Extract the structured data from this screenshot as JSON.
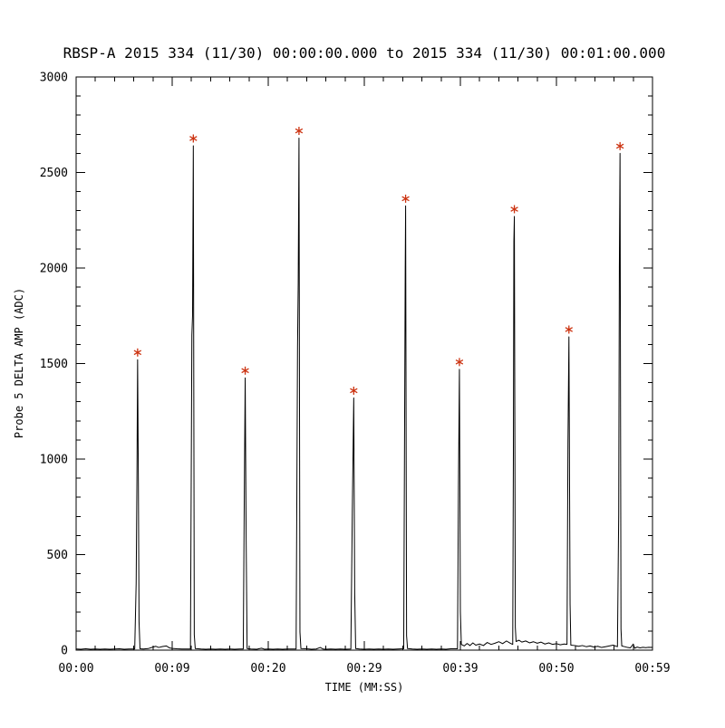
{
  "window": {
    "background": "#ffffff",
    "foreground": "#000000"
  },
  "chart_data": {
    "type": "line",
    "title": "RBSP-A 2015 334 (11/30) 00:00:00.000 to 2015 334 (11/30) 00:01:00.000",
    "xlabel": "TIME (MM:SS)",
    "ylabel": "Probe 5 DELTA AMP (ADC)",
    "xlim": [
      0,
      60
    ],
    "ylim": [
      0,
      3000
    ],
    "grid": false,
    "legend": "none",
    "line_color": "#000000",
    "marker": "asterisk",
    "marker_color": "#cc3311",
    "x_ticks": [
      {
        "t": 0,
        "label": "00:00"
      },
      {
        "t": 10,
        "label": "00:09"
      },
      {
        "t": 20,
        "label": "00:20"
      },
      {
        "t": 30,
        "label": "00:29"
      },
      {
        "t": 40,
        "label": "00:39"
      },
      {
        "t": 50,
        "label": "00:50"
      },
      {
        "t": 60,
        "label": "00:59"
      }
    ],
    "y_ticks": [
      {
        "v": 0,
        "label": "0"
      },
      {
        "v": 500,
        "label": "500"
      },
      {
        "v": 1000,
        "label": "1000"
      },
      {
        "v": 1500,
        "label": "1500"
      },
      {
        "v": 2000,
        "label": "2000"
      },
      {
        "v": 2500,
        "label": "2500"
      },
      {
        "v": 3000,
        "label": "3000"
      }
    ],
    "x_minor_step": 2,
    "y_minor_step": 100,
    "peaks": [
      [
        6.4,
        1520
      ],
      [
        12.2,
        2640
      ],
      [
        17.6,
        1425
      ],
      [
        23.2,
        2680
      ],
      [
        28.9,
        1320
      ],
      [
        34.3,
        2325
      ],
      [
        39.9,
        1470
      ],
      [
        45.62,
        2270
      ],
      [
        51.3,
        1640
      ],
      [
        56.62,
        2600
      ]
    ],
    "series": [
      {
        "name": "Probe 5 DELTA AMP",
        "points": [
          [
            0,
            6
          ],
          [
            0.5,
            5
          ],
          [
            1,
            7
          ],
          [
            1.5,
            5
          ],
          [
            2,
            6
          ],
          [
            2.5,
            5
          ],
          [
            3,
            6
          ],
          [
            3.5,
            5
          ],
          [
            4,
            6
          ],
          [
            4.5,
            7
          ],
          [
            5,
            5
          ],
          [
            5.5,
            6
          ],
          [
            6.1,
            6
          ],
          [
            6.25,
            350
          ],
          [
            6.33,
            890
          ],
          [
            6.4,
            1520
          ],
          [
            6.48,
            880
          ],
          [
            6.55,
            150
          ],
          [
            6.65,
            7
          ],
          [
            7,
            6
          ],
          [
            7.5,
            8
          ],
          [
            8,
            16
          ],
          [
            8.3,
            20
          ],
          [
            8.6,
            14
          ],
          [
            9,
            19
          ],
          [
            9.4,
            22
          ],
          [
            9.7,
            12
          ],
          [
            10,
            9
          ],
          [
            10.5,
            7
          ],
          [
            11,
            6
          ],
          [
            11.9,
            6
          ],
          [
            12.05,
            1650
          ],
          [
            12.12,
            1750
          ],
          [
            12.2,
            2640
          ],
          [
            12.3,
            80
          ],
          [
            12.4,
            8
          ],
          [
            13,
            6
          ],
          [
            13.5,
            5
          ],
          [
            14,
            6
          ],
          [
            14.5,
            5
          ],
          [
            15,
            6
          ],
          [
            15.5,
            5
          ],
          [
            16,
            6
          ],
          [
            16.5,
            5
          ],
          [
            17,
            6
          ],
          [
            17.4,
            6
          ],
          [
            17.5,
            760
          ],
          [
            17.6,
            1425
          ],
          [
            17.7,
            580
          ],
          [
            17.8,
            8
          ],
          [
            18.2,
            6
          ],
          [
            18.8,
            5
          ],
          [
            19.3,
            10
          ],
          [
            19.6,
            5
          ],
          [
            20,
            6
          ],
          [
            20.5,
            5
          ],
          [
            21,
            6
          ],
          [
            21.5,
            5
          ],
          [
            22,
            6
          ],
          [
            22.9,
            6
          ],
          [
            23.05,
            1590
          ],
          [
            23.12,
            1920
          ],
          [
            23.2,
            2680
          ],
          [
            23.3,
            95
          ],
          [
            23.4,
            8
          ],
          [
            24,
            7
          ],
          [
            24.5,
            5
          ],
          [
            25,
            6
          ],
          [
            25.4,
            14
          ],
          [
            25.7,
            6
          ],
          [
            26,
            5
          ],
          [
            26.5,
            6
          ],
          [
            27,
            5
          ],
          [
            27.5,
            6
          ],
          [
            28,
            5
          ],
          [
            28.6,
            6
          ],
          [
            28.75,
            720
          ],
          [
            28.9,
            1320
          ],
          [
            29.0,
            300
          ],
          [
            29.1,
            8
          ],
          [
            29.5,
            6
          ],
          [
            30,
            5
          ],
          [
            30.5,
            6
          ],
          [
            31,
            5
          ],
          [
            31.5,
            6
          ],
          [
            32,
            5
          ],
          [
            32.5,
            6
          ],
          [
            33,
            5
          ],
          [
            33.5,
            6
          ],
          [
            34.1,
            7
          ],
          [
            34.2,
            1250
          ],
          [
            34.26,
            2000
          ],
          [
            34.3,
            2325
          ],
          [
            34.4,
            75
          ],
          [
            34.5,
            8
          ],
          [
            35,
            6
          ],
          [
            35.5,
            5
          ],
          [
            36,
            6
          ],
          [
            36.5,
            5
          ],
          [
            37,
            6
          ],
          [
            37.5,
            5
          ],
          [
            38,
            6
          ],
          [
            38.5,
            5
          ],
          [
            39,
            7
          ],
          [
            39.7,
            7
          ],
          [
            39.8,
            860
          ],
          [
            39.9,
            1470
          ],
          [
            40.0,
            200
          ],
          [
            40.1,
            30
          ],
          [
            40.4,
            22
          ],
          [
            40.7,
            35
          ],
          [
            41,
            24
          ],
          [
            41.3,
            38
          ],
          [
            41.6,
            26
          ],
          [
            42,
            32
          ],
          [
            42.4,
            24
          ],
          [
            42.8,
            40
          ],
          [
            43.2,
            30
          ],
          [
            43.6,
            36
          ],
          [
            44,
            44
          ],
          [
            44.4,
            34
          ],
          [
            44.8,
            48
          ],
          [
            45.2,
            36
          ],
          [
            45.45,
            30
          ],
          [
            45.52,
            1040
          ],
          [
            45.57,
            2140
          ],
          [
            45.62,
            2270
          ],
          [
            45.72,
            120
          ],
          [
            45.8,
            45
          ],
          [
            46.1,
            52
          ],
          [
            46.4,
            42
          ],
          [
            46.8,
            48
          ],
          [
            47.2,
            38
          ],
          [
            47.6,
            44
          ],
          [
            48,
            36
          ],
          [
            48.4,
            42
          ],
          [
            48.8,
            32
          ],
          [
            49.2,
            38
          ],
          [
            49.6,
            30
          ],
          [
            50,
            34
          ],
          [
            50.4,
            28
          ],
          [
            50.8,
            32
          ],
          [
            51.1,
            30
          ],
          [
            51.2,
            1080
          ],
          [
            51.3,
            1640
          ],
          [
            51.42,
            240
          ],
          [
            51.5,
            26
          ],
          [
            51.9,
            24
          ],
          [
            52.3,
            20
          ],
          [
            52.7,
            24
          ],
          [
            53.1,
            18
          ],
          [
            53.5,
            22
          ],
          [
            53.9,
            16
          ],
          [
            54.3,
            20
          ],
          [
            54.7,
            14
          ],
          [
            55.1,
            18
          ],
          [
            55.5,
            22
          ],
          [
            55.9,
            26
          ],
          [
            56.35,
            18
          ],
          [
            56.48,
            710
          ],
          [
            56.55,
            2000
          ],
          [
            56.62,
            2600
          ],
          [
            56.72,
            110
          ],
          [
            56.8,
            22
          ],
          [
            57.1,
            18
          ],
          [
            57.4,
            14
          ],
          [
            57.7,
            12
          ],
          [
            58,
            32
          ],
          [
            58.15,
            10
          ],
          [
            58.4,
            16
          ],
          [
            58.7,
            12
          ],
          [
            59,
            15
          ],
          [
            59.3,
            13
          ],
          [
            59.6,
            15
          ],
          [
            60,
            14
          ]
        ]
      }
    ]
  }
}
